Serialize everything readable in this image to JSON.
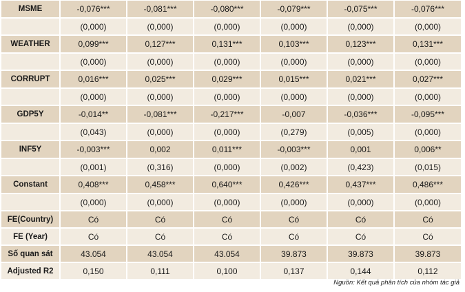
{
  "table": {
    "rows": [
      {
        "label": "MSME",
        "cells": [
          "-0,076***",
          "-0,081***",
          "-0,080***",
          "-0,079***",
          "-0,075***",
          "-0,076***"
        ]
      },
      {
        "label": "",
        "cells": [
          "(0,000)",
          "(0,000)",
          "(0,000)",
          "(0,000)",
          "(0,000)",
          "(0,000)"
        ]
      },
      {
        "label": "WEATHER",
        "cells": [
          "0,099***",
          "0,127***",
          "0,131***",
          "0,103***",
          "0,123***",
          "0,131***"
        ]
      },
      {
        "label": "",
        "cells": [
          "(0,000)",
          "(0,000)",
          "(0,000)",
          "(0,000)",
          "(0,000)",
          "(0,000)"
        ]
      },
      {
        "label": "CORRUPT",
        "cells": [
          "0,016***",
          "0,025***",
          "0,029***",
          "0,015***",
          "0,021***",
          "0,027***"
        ]
      },
      {
        "label": "",
        "cells": [
          "(0,000)",
          "(0,000)",
          "(0,000)",
          "(0,000)",
          "(0,000)",
          "(0,000)"
        ]
      },
      {
        "label": "GDP5Y",
        "cells": [
          "-0,014**",
          "-0,081***",
          "-0,217***",
          "-0,007",
          "-0,036***",
          "-0,095***"
        ]
      },
      {
        "label": "",
        "cells": [
          "(0,043)",
          "(0,000)",
          "(0,000)",
          "(0,279)",
          "(0,005)",
          "(0,000)"
        ]
      },
      {
        "label": "INF5Y",
        "cells": [
          "-0,003***",
          "0,002",
          "0,011***",
          "-0,003***",
          "0,001",
          "0,006**"
        ]
      },
      {
        "label": "",
        "cells": [
          "(0,001)",
          "(0,316)",
          "(0,000)",
          "(0,002)",
          "(0,423)",
          "(0,015)"
        ]
      },
      {
        "label": "Constant",
        "cells": [
          "0,408***",
          "0,458***",
          "0,640***",
          "0,426***",
          "0,437***",
          "0,486***"
        ]
      },
      {
        "label": "",
        "cells": [
          "(0,000)",
          "(0,000)",
          "(0,000)",
          "(0,000)",
          "(0,000)",
          "(0,000)"
        ]
      },
      {
        "label": "FE(Country)",
        "cells": [
          "Có",
          "Có",
          "Có",
          "Có",
          "Có",
          "Có"
        ]
      },
      {
        "label": "FE (Year)",
        "cells": [
          "Có",
          "Có",
          "Có",
          "Có",
          "Có",
          "Có"
        ]
      },
      {
        "label": "Số quan sát",
        "cells": [
          "43.054",
          "43.054",
          "43.054",
          "39.873",
          "39.873",
          "39.873"
        ]
      },
      {
        "label": "Adjusted R2",
        "cells": [
          "0,150",
          "0,111",
          "0,100",
          "0,137",
          "0,144",
          "0,112"
        ]
      }
    ]
  },
  "source_note": "Nguồn: Kết quả phân tích của nhóm tác giả",
  "colors": {
    "dark_row": "#e2d4bf",
    "light_row": "#f2ebe0"
  }
}
